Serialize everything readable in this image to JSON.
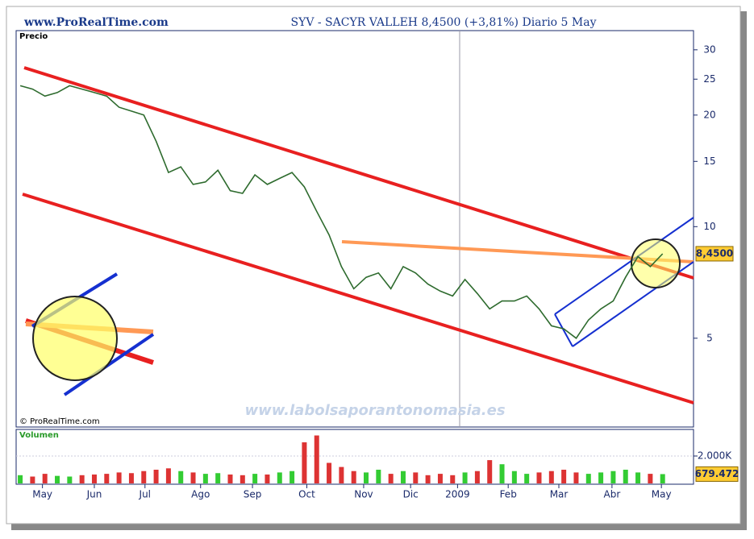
{
  "header": {
    "site": "www.ProRealTime.com",
    "title": "SYV - SACYR VALLEH   8,4500 (+3,81%)   Diario  5 May"
  },
  "copyright": "© ProRealTime.com",
  "watermark": "www.labolsaporantonomasia.es",
  "chart_data": [
    {
      "type": "line",
      "title": "Precio",
      "log_scale": true,
      "x": [
        0,
        1,
        2,
        3,
        4,
        5,
        6,
        7,
        8,
        9,
        10,
        11,
        12,
        13,
        14,
        15,
        16,
        17,
        18,
        19,
        20,
        21,
        22,
        23,
        24,
        25,
        26,
        27,
        28,
        29,
        30,
        31,
        32,
        33,
        34,
        35,
        36,
        37,
        38,
        39,
        40,
        41,
        42,
        43,
        44,
        45,
        46,
        47,
        48,
        49,
        50,
        51,
        52
      ],
      "xlim": [
        -0.33,
        54.5
      ],
      "series": [
        {
          "name": "SYV",
          "color": "#2e6b2e",
          "values": [
            24,
            23.5,
            22.5,
            23,
            24,
            23.5,
            23,
            22.5,
            21,
            20.5,
            20,
            17,
            14,
            14.5,
            13,
            13.2,
            14.2,
            12.5,
            12.3,
            13.8,
            13,
            13.5,
            14,
            12.8,
            11,
            9.5,
            7.8,
            6.8,
            7.3,
            7.5,
            6.8,
            7.8,
            7.5,
            7.0,
            6.7,
            6.5,
            7.2,
            6.6,
            6.0,
            6.3,
            6.3,
            6.5,
            6.0,
            5.4,
            5.3,
            5.0,
            5.6,
            6.0,
            6.3,
            7.3,
            8.3,
            7.8,
            8.45
          ],
          "value_labels": [
            null,
            null,
            null,
            null,
            null,
            null,
            null,
            null,
            null,
            null,
            null,
            null,
            null,
            null,
            null,
            null,
            null,
            null,
            null,
            null,
            null,
            null,
            null,
            null,
            null,
            null,
            null,
            null,
            null,
            null,
            null,
            null,
            null,
            null,
            null,
            null,
            null,
            null,
            null,
            null,
            null,
            null,
            null,
            null,
            null,
            null,
            null,
            null,
            null,
            null,
            null,
            null,
            "8,4500"
          ]
        }
      ],
      "ylim": [
        2.88,
        33.8
      ],
      "yticks": [
        5,
        10,
        15,
        20,
        25,
        30
      ]
    },
    {
      "type": "bar",
      "title": "Volumen",
      "up_color": "#33cc33",
      "down_color": "#dd3333",
      "x": [
        0,
        1,
        2,
        3,
        4,
        5,
        6,
        7,
        8,
        9,
        10,
        11,
        12,
        13,
        14,
        15,
        16,
        17,
        18,
        19,
        20,
        21,
        22,
        23,
        24,
        25,
        26,
        27,
        28,
        29,
        30,
        31,
        32,
        33,
        34,
        35,
        36,
        37,
        38,
        39,
        40,
        41,
        42,
        43,
        44,
        45,
        46,
        47,
        48,
        49,
        50,
        51,
        52
      ],
      "xlim": [
        -0.33,
        54.5
      ],
      "series": [
        {
          "name": "Volumen",
          "values": [
            600000,
            500000,
            700000,
            550000,
            500000,
            600000,
            650000,
            700000,
            800000,
            750000,
            900000,
            1000000,
            1100000,
            900000,
            800000,
            700000,
            750000,
            650000,
            600000,
            700000,
            650000,
            800000,
            900000,
            3000000,
            3500000,
            1500000,
            1200000,
            900000,
            800000,
            1000000,
            700000,
            900000,
            800000,
            600000,
            700000,
            600000,
            800000,
            900000,
            1700000,
            1400000,
            900000,
            700000,
            800000,
            900000,
            1000000,
            800000,
            700000,
            800000,
            900000,
            1000000,
            800000,
            700000,
            679472
          ],
          "value_labels": [
            null,
            null,
            null,
            null,
            null,
            null,
            null,
            null,
            null,
            null,
            null,
            null,
            null,
            null,
            null,
            null,
            null,
            null,
            null,
            null,
            null,
            null,
            null,
            null,
            null,
            null,
            null,
            null,
            null,
            null,
            null,
            null,
            null,
            null,
            null,
            null,
            null,
            null,
            null,
            null,
            null,
            null,
            null,
            null,
            null,
            null,
            null,
            null,
            null,
            null,
            null,
            null,
            "679.472"
          ]
        }
      ],
      "ylim": [
        0,
        3824000
      ],
      "yticks": [
        {
          "value": 2000000,
          "label": "2.000K"
        }
      ],
      "xticks": [
        {
          "value": 1.8,
          "label": "May"
        },
        {
          "value": 6.0,
          "label": "Jun"
        },
        {
          "value": 10.1,
          "label": "Jul"
        },
        {
          "value": 14.6,
          "label": "Ago"
        },
        {
          "value": 18.8,
          "label": "Sep"
        },
        {
          "value": 23.2,
          "label": "Oct"
        },
        {
          "value": 27.8,
          "label": "Nov"
        },
        {
          "value": 31.6,
          "label": "Dic"
        },
        {
          "value": 35.4,
          "label": "2009"
        },
        {
          "value": 39.5,
          "label": "Feb"
        },
        {
          "value": 43.6,
          "label": "Mar"
        },
        {
          "value": 47.9,
          "label": "Abr"
        },
        {
          "value": 51.9,
          "label": "May"
        }
      ]
    }
  ]
}
